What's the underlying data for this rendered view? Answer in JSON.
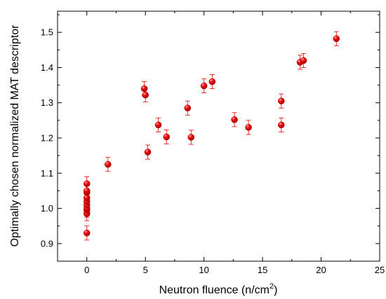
{
  "chart_data": {
    "type": "scatter",
    "xlabel": "Neutron fluence  (n/cm",
    "xlabel_sup": "2",
    "xlabel_close": ")",
    "ylabel": "Optimally chosen normalized MAT descriptor",
    "xlim": [
      -2.5,
      25
    ],
    "ylim": [
      0.85,
      1.56
    ],
    "xticks": [
      0,
      5,
      10,
      15,
      20,
      25
    ],
    "yticks": [
      0.9,
      1.0,
      1.1,
      1.2,
      1.3,
      1.4,
      1.5
    ],
    "ytick_labels": [
      "0.9",
      "1.0",
      "1.1",
      "1.2",
      "1.3",
      "1.4",
      "1.5"
    ],
    "grid": false,
    "marker_color": "#e00000",
    "error": 0.02,
    "points": [
      {
        "x": 0.0,
        "y": 0.93
      },
      {
        "x": 0.0,
        "y": 0.985
      },
      {
        "x": 0.0,
        "y": 0.995
      },
      {
        "x": 0.0,
        "y": 1.0
      },
      {
        "x": 0.0,
        "y": 1.01
      },
      {
        "x": 0.0,
        "y": 1.02
      },
      {
        "x": 0.0,
        "y": 1.03
      },
      {
        "x": 0.0,
        "y": 1.045
      },
      {
        "x": 0.0,
        "y": 1.05
      },
      {
        "x": 0.0,
        "y": 1.07
      },
      {
        "x": 1.8,
        "y": 1.125
      },
      {
        "x": 4.9,
        "y": 1.34
      },
      {
        "x": 5.0,
        "y": 1.322
      },
      {
        "x": 5.2,
        "y": 1.16
      },
      {
        "x": 6.1,
        "y": 1.237
      },
      {
        "x": 6.8,
        "y": 1.203
      },
      {
        "x": 8.6,
        "y": 1.285
      },
      {
        "x": 8.9,
        "y": 1.202
      },
      {
        "x": 10.0,
        "y": 1.348
      },
      {
        "x": 10.7,
        "y": 1.36
      },
      {
        "x": 12.6,
        "y": 1.252
      },
      {
        "x": 13.8,
        "y": 1.23
      },
      {
        "x": 16.6,
        "y": 1.305
      },
      {
        "x": 16.6,
        "y": 1.237
      },
      {
        "x": 18.2,
        "y": 1.415
      },
      {
        "x": 18.5,
        "y": 1.42
      },
      {
        "x": 21.3,
        "y": 1.482
      }
    ]
  }
}
